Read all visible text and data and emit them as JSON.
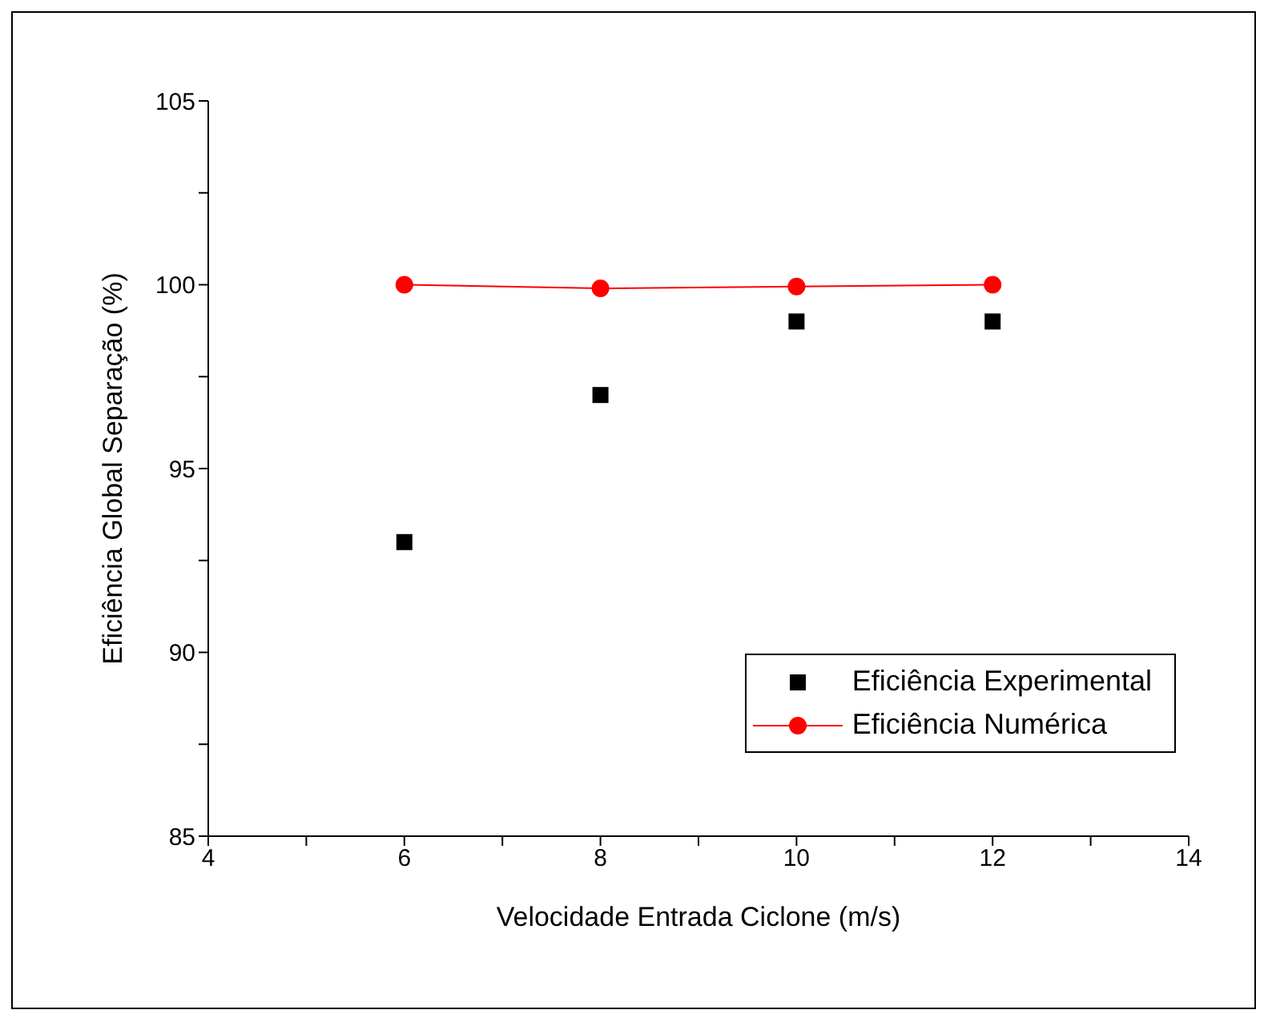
{
  "chart_data": {
    "type": "scatter",
    "xlabel": "Velocidade Entrada Ciclone (m/s)",
    "ylabel": "Eficiência Global Separação (%)",
    "x": [
      6,
      8,
      10,
      12
    ],
    "series": [
      {
        "name": "Eficiência Experimental",
        "marker": "square",
        "color": "#000000",
        "values": [
          93,
          97,
          99,
          99
        ]
      },
      {
        "name": "Eficiência Numérica",
        "type": "line",
        "marker": "circle",
        "line_style": "solid",
        "color": "#ff0000",
        "values": [
          100,
          99.9,
          99.95,
          100
        ]
      }
    ],
    "xlim": [
      4,
      14
    ],
    "xticks": [
      4,
      {
        "value": 5,
        "label": null
      },
      6,
      {
        "value": 7,
        "label": null
      },
      8,
      {
        "value": 9,
        "label": null
      },
      10,
      {
        "value": 11,
        "label": null
      },
      12,
      {
        "value": 13,
        "label": null
      },
      14
    ],
    "ylim": [
      85,
      105
    ],
    "yticks": [
      85,
      {
        "value": 87.5,
        "label": null
      },
      90,
      {
        "value": 92.5,
        "label": null
      },
      95,
      {
        "value": 97.5,
        "label": null
      },
      100,
      {
        "value": 102.5,
        "label": null
      },
      105
    ],
    "grid": false,
    "legend": "bottom right"
  }
}
